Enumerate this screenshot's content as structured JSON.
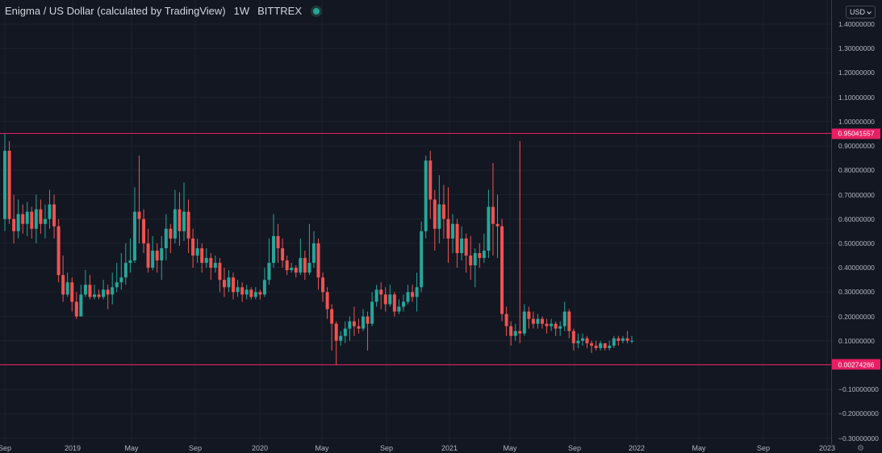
{
  "header": {
    "title": "Enigma / US Dollar (calculated by TradingView)",
    "interval": "1W",
    "exchange": "BITTREX"
  },
  "currency": {
    "label": "USD",
    "chevron": "chevron-down-icon"
  },
  "price_axis": {
    "ticks": [
      "1.40000000",
      "1.30000000",
      "1.20000000",
      "1.10000000",
      "1.00000000",
      "0.90000000",
      "0.80000000",
      "0.70000000",
      "0.60000000",
      "0.50000000",
      "0.40000000",
      "0.30000000",
      "0.20000000",
      "0.10000000",
      "−0.10000000",
      "−0.20000000",
      "−0.30000000"
    ],
    "tick_values": [
      1.4,
      1.3,
      1.2,
      1.1,
      1.0,
      0.9,
      0.8,
      0.7,
      0.6,
      0.5,
      0.4,
      0.3,
      0.2,
      0.1,
      -0.1,
      -0.2,
      -0.3
    ],
    "marker_top": {
      "label": "0.95041557",
      "value": 0.95041557
    },
    "marker_bottom": {
      "label": "0.00274266",
      "value": 0.00274266
    }
  },
  "time_axis": {
    "labels": [
      "Sep",
      "2019",
      "May",
      "Sep",
      "2020",
      "May",
      "Sep",
      "2021",
      "May",
      "Sep",
      "2022",
      "May",
      "Sep",
      "2023"
    ]
  },
  "settings": {
    "icon": "gear-icon"
  },
  "colors": {
    "background": "#131722",
    "up": "#26a69a",
    "down": "#ef5350",
    "hline": "#e91e63",
    "grid": "#1e222d"
  },
  "chart_data": {
    "type": "candlestick",
    "title": "Enigma / US Dollar (calculated by TradingView)",
    "interval": "1W",
    "exchange": "BITTREX",
    "ylim": [
      -0.3,
      1.45
    ],
    "horizontal_lines": [
      0.95041557,
      0.00274266
    ],
    "x_labels": [
      "Sep",
      "2019",
      "May",
      "Sep",
      "2020",
      "May",
      "Sep",
      "2021",
      "May",
      "Sep",
      "2022",
      "May",
      "Sep",
      "2023"
    ],
    "candles": [
      [
        0.6,
        0.88,
        0.55,
        0.95
      ],
      [
        0.88,
        0.6,
        0.58,
        0.92
      ],
      [
        0.6,
        0.55,
        0.5,
        0.7
      ],
      [
        0.55,
        0.62,
        0.52,
        0.68
      ],
      [
        0.62,
        0.58,
        0.54,
        0.66
      ],
      [
        0.58,
        0.63,
        0.53,
        0.67
      ],
      [
        0.63,
        0.56,
        0.52,
        0.65
      ],
      [
        0.56,
        0.64,
        0.5,
        0.7
      ],
      [
        0.64,
        0.58,
        0.54,
        0.68
      ],
      [
        0.58,
        0.6,
        0.52,
        0.66
      ],
      [
        0.6,
        0.66,
        0.56,
        0.72
      ],
      [
        0.66,
        0.57,
        0.52,
        0.7
      ],
      [
        0.57,
        0.37,
        0.34,
        0.6
      ],
      [
        0.37,
        0.29,
        0.26,
        0.45
      ],
      [
        0.29,
        0.34,
        0.28,
        0.38
      ],
      [
        0.34,
        0.26,
        0.22,
        0.36
      ],
      [
        0.26,
        0.2,
        0.19,
        0.3
      ],
      [
        0.2,
        0.29,
        0.2,
        0.33
      ],
      [
        0.29,
        0.33,
        0.28,
        0.39
      ],
      [
        0.33,
        0.28,
        0.27,
        0.37
      ],
      [
        0.28,
        0.29,
        0.27,
        0.33
      ],
      [
        0.29,
        0.28,
        0.27,
        0.31
      ],
      [
        0.28,
        0.31,
        0.27,
        0.35
      ],
      [
        0.31,
        0.29,
        0.23,
        0.33
      ],
      [
        0.29,
        0.32,
        0.25,
        0.38
      ],
      [
        0.32,
        0.34,
        0.3,
        0.42
      ],
      [
        0.34,
        0.36,
        0.31,
        0.46
      ],
      [
        0.36,
        0.42,
        0.33,
        0.5
      ],
      [
        0.42,
        0.43,
        0.38,
        0.52
      ],
      [
        0.43,
        0.63,
        0.42,
        0.73
      ],
      [
        0.63,
        0.6,
        0.5,
        0.86
      ],
      [
        0.6,
        0.5,
        0.46,
        0.64
      ],
      [
        0.5,
        0.4,
        0.38,
        0.56
      ],
      [
        0.4,
        0.47,
        0.39,
        0.53
      ],
      [
        0.47,
        0.43,
        0.38,
        0.5
      ],
      [
        0.43,
        0.48,
        0.35,
        0.53
      ],
      [
        0.48,
        0.56,
        0.43,
        0.62
      ],
      [
        0.56,
        0.52,
        0.46,
        0.58
      ],
      [
        0.52,
        0.64,
        0.5,
        0.72
      ],
      [
        0.64,
        0.55,
        0.49,
        0.71
      ],
      [
        0.55,
        0.63,
        0.51,
        0.75
      ],
      [
        0.63,
        0.52,
        0.46,
        0.68
      ],
      [
        0.52,
        0.45,
        0.4,
        0.56
      ],
      [
        0.45,
        0.48,
        0.42,
        0.52
      ],
      [
        0.48,
        0.42,
        0.38,
        0.5
      ],
      [
        0.42,
        0.44,
        0.4,
        0.48
      ],
      [
        0.44,
        0.4,
        0.35,
        0.46
      ],
      [
        0.4,
        0.42,
        0.38,
        0.45
      ],
      [
        0.42,
        0.35,
        0.3,
        0.44
      ],
      [
        0.35,
        0.32,
        0.28,
        0.4
      ],
      [
        0.32,
        0.36,
        0.3,
        0.39
      ],
      [
        0.36,
        0.3,
        0.27,
        0.38
      ],
      [
        0.3,
        0.32,
        0.28,
        0.35
      ],
      [
        0.32,
        0.29,
        0.26,
        0.34
      ],
      [
        0.29,
        0.31,
        0.27,
        0.33
      ],
      [
        0.31,
        0.28,
        0.27,
        0.32
      ],
      [
        0.28,
        0.3,
        0.27,
        0.32
      ],
      [
        0.3,
        0.29,
        0.27,
        0.31
      ],
      [
        0.29,
        0.35,
        0.28,
        0.4
      ],
      [
        0.35,
        0.42,
        0.33,
        0.52
      ],
      [
        0.42,
        0.53,
        0.4,
        0.62
      ],
      [
        0.53,
        0.48,
        0.42,
        0.58
      ],
      [
        0.48,
        0.43,
        0.4,
        0.52
      ],
      [
        0.43,
        0.39,
        0.37,
        0.45
      ],
      [
        0.39,
        0.4,
        0.38,
        0.42
      ],
      [
        0.4,
        0.38,
        0.36,
        0.41
      ],
      [
        0.38,
        0.44,
        0.37,
        0.52
      ],
      [
        0.44,
        0.38,
        0.35,
        0.47
      ],
      [
        0.38,
        0.42,
        0.37,
        0.58
      ],
      [
        0.42,
        0.5,
        0.4,
        0.55
      ],
      [
        0.5,
        0.36,
        0.31,
        0.52
      ],
      [
        0.36,
        0.3,
        0.26,
        0.38
      ],
      [
        0.3,
        0.23,
        0.19,
        0.32
      ],
      [
        0.23,
        0.17,
        0.06,
        0.25
      ],
      [
        0.17,
        0.1,
        0.0,
        0.18
      ],
      [
        0.1,
        0.12,
        0.08,
        0.14
      ],
      [
        0.12,
        0.15,
        0.09,
        0.18
      ],
      [
        0.15,
        0.18,
        0.1,
        0.2
      ],
      [
        0.18,
        0.16,
        0.12,
        0.24
      ],
      [
        0.16,
        0.15,
        0.13,
        0.19
      ],
      [
        0.15,
        0.2,
        0.14,
        0.23
      ],
      [
        0.2,
        0.17,
        0.06,
        0.22
      ],
      [
        0.17,
        0.26,
        0.16,
        0.3
      ],
      [
        0.26,
        0.31,
        0.24,
        0.33
      ],
      [
        0.31,
        0.29,
        0.23,
        0.34
      ],
      [
        0.29,
        0.25,
        0.22,
        0.32
      ],
      [
        0.25,
        0.29,
        0.24,
        0.33
      ],
      [
        0.29,
        0.22,
        0.2,
        0.3
      ],
      [
        0.22,
        0.24,
        0.21,
        0.27
      ],
      [
        0.24,
        0.26,
        0.22,
        0.29
      ],
      [
        0.26,
        0.3,
        0.25,
        0.33
      ],
      [
        0.3,
        0.28,
        0.26,
        0.33
      ],
      [
        0.28,
        0.32,
        0.22,
        0.38
      ],
      [
        0.32,
        0.55,
        0.3,
        0.59
      ],
      [
        0.55,
        0.84,
        0.52,
        0.86
      ],
      [
        0.84,
        0.68,
        0.6,
        0.88
      ],
      [
        0.68,
        0.56,
        0.47,
        0.72
      ],
      [
        0.56,
        0.66,
        0.5,
        0.78
      ],
      [
        0.66,
        0.6,
        0.52,
        0.74
      ],
      [
        0.6,
        0.52,
        0.42,
        0.73
      ],
      [
        0.52,
        0.58,
        0.46,
        0.62
      ],
      [
        0.58,
        0.46,
        0.4,
        0.6
      ],
      [
        0.46,
        0.52,
        0.43,
        0.57
      ],
      [
        0.52,
        0.45,
        0.38,
        0.54
      ],
      [
        0.45,
        0.41,
        0.35,
        0.53
      ],
      [
        0.41,
        0.46,
        0.32,
        0.48
      ],
      [
        0.46,
        0.44,
        0.4,
        0.5
      ],
      [
        0.44,
        0.47,
        0.42,
        0.54
      ],
      [
        0.47,
        0.65,
        0.44,
        0.72
      ],
      [
        0.65,
        0.58,
        0.45,
        0.83
      ],
      [
        0.58,
        0.57,
        0.44,
        0.7
      ],
      [
        0.57,
        0.21,
        0.18,
        0.6
      ],
      [
        0.21,
        0.16,
        0.12,
        0.24
      ],
      [
        0.16,
        0.12,
        0.08,
        0.18
      ],
      [
        0.12,
        0.14,
        0.1,
        0.17
      ],
      [
        0.14,
        0.13,
        0.09,
        0.92
      ],
      [
        0.13,
        0.22,
        0.12,
        0.25
      ],
      [
        0.22,
        0.19,
        0.15,
        0.24
      ],
      [
        0.19,
        0.17,
        0.15,
        0.22
      ],
      [
        0.17,
        0.19,
        0.15,
        0.21
      ],
      [
        0.19,
        0.17,
        0.15,
        0.2
      ],
      [
        0.17,
        0.16,
        0.13,
        0.19
      ],
      [
        0.16,
        0.17,
        0.14,
        0.19
      ],
      [
        0.17,
        0.15,
        0.12,
        0.18
      ],
      [
        0.15,
        0.16,
        0.12,
        0.18
      ],
      [
        0.16,
        0.22,
        0.14,
        0.26
      ],
      [
        0.22,
        0.14,
        0.11,
        0.23
      ],
      [
        0.14,
        0.09,
        0.06,
        0.15
      ],
      [
        0.09,
        0.1,
        0.07,
        0.13
      ],
      [
        0.1,
        0.11,
        0.08,
        0.13
      ],
      [
        0.11,
        0.09,
        0.07,
        0.12
      ],
      [
        0.09,
        0.08,
        0.05,
        0.1
      ],
      [
        0.08,
        0.07,
        0.06,
        0.1
      ],
      [
        0.07,
        0.09,
        0.06,
        0.1
      ],
      [
        0.09,
        0.07,
        0.06,
        0.09
      ],
      [
        0.07,
        0.08,
        0.06,
        0.1
      ],
      [
        0.08,
        0.11,
        0.07,
        0.12
      ],
      [
        0.11,
        0.1,
        0.08,
        0.12
      ],
      [
        0.1,
        0.11,
        0.09,
        0.12
      ],
      [
        0.11,
        0.1,
        0.09,
        0.14
      ],
      [
        0.1,
        0.1,
        0.09,
        0.12
      ]
    ]
  }
}
